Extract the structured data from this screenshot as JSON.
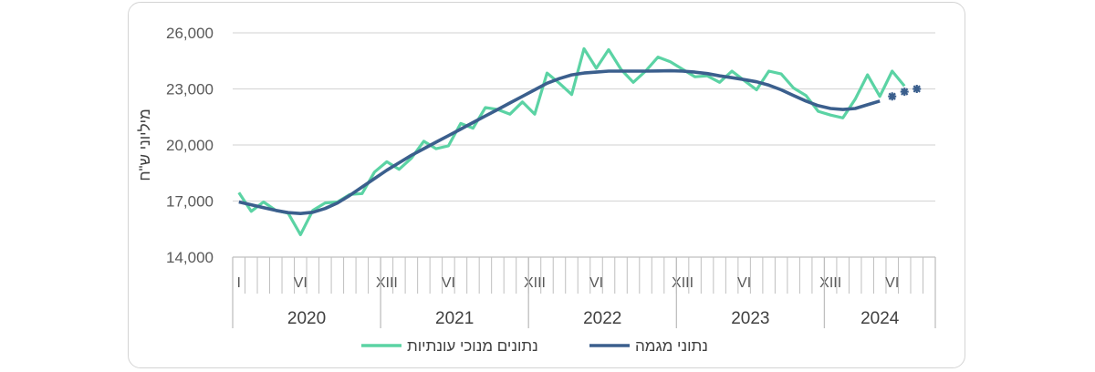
{
  "chart_data": {
    "type": "line",
    "ylabel": "מיליוני ש\"ח",
    "ylim": [
      14000,
      26000
    ],
    "yticks": [
      "14,000",
      "17,000",
      "20,000",
      "23,000",
      "26,000"
    ],
    "grid": true,
    "legend_position": "bottom",
    "years": [
      "2020",
      "2021",
      "2022",
      "2023",
      "2024"
    ],
    "month_ticks": [
      "I",
      "VI",
      "XIII",
      "VI",
      "XIII",
      "VI",
      "XIII",
      "VI",
      "XIII",
      "VI"
    ],
    "colors": {
      "seasonal": "#5bd3a4",
      "trend": "#3b5f8d",
      "grid": "#d9d9d9",
      "axis": "#bfbfbf"
    },
    "series": [
      {
        "name": "נתונים מנוכי עונתיות",
        "values": [
          17450,
          16450,
          16950,
          16500,
          16350,
          15200,
          16500,
          16900,
          16950,
          17350,
          17400,
          18550,
          19100,
          18700,
          19300,
          20200,
          19800,
          19950,
          21150,
          20900,
          22000,
          21900,
          21650,
          22300,
          21650,
          23850,
          23300,
          22700,
          25150,
          24100,
          25100,
          24050,
          23350,
          23950,
          24700,
          24450,
          24050,
          23650,
          23700,
          23350,
          23950,
          23450,
          22950,
          23950,
          23800,
          23050,
          22650,
          21800,
          21600,
          21450,
          22450,
          23750,
          22600,
          23950,
          23150
        ],
        "markers_from_index": 55
      },
      {
        "name": "נתוני מגמה",
        "values": [
          16950,
          16800,
          16650,
          16500,
          16380,
          16330,
          16400,
          16600,
          16900,
          17300,
          17750,
          18200,
          18650,
          19050,
          19450,
          19800,
          20150,
          20500,
          20850,
          21200,
          21550,
          21900,
          22250,
          22600,
          22950,
          23300,
          23550,
          23750,
          23850,
          23900,
          23950,
          23950,
          23950,
          23950,
          23960,
          23970,
          23950,
          23900,
          23820,
          23700,
          23600,
          23500,
          23380,
          23200,
          22950,
          22650,
          22350,
          22100,
          21950,
          21900,
          21950,
          22150,
          22350
        ],
        "forecast_markers": [
          22600,
          22850,
          23000
        ]
      }
    ]
  }
}
